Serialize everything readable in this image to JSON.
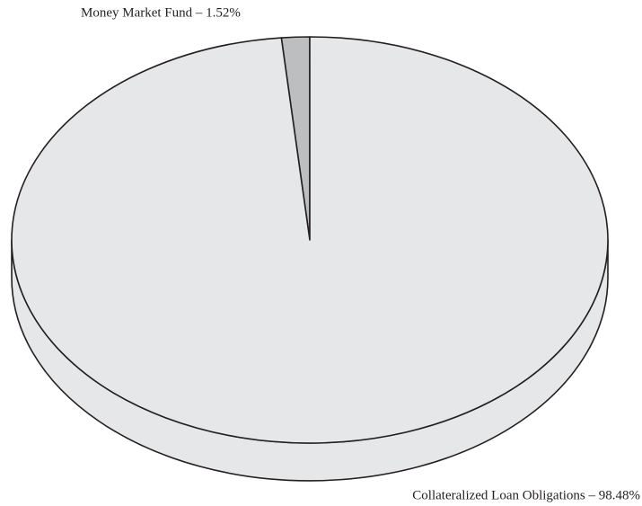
{
  "chart_data": {
    "type": "pie",
    "style": "3d",
    "values": [
      1.52,
      98.48
    ],
    "value_labels": [
      "Money Market Fund – 1.52%",
      "Collateralized Loan Obligations – 98.48%"
    ],
    "colors": [
      "#bcbec0",
      "#e6e7e8"
    ]
  }
}
